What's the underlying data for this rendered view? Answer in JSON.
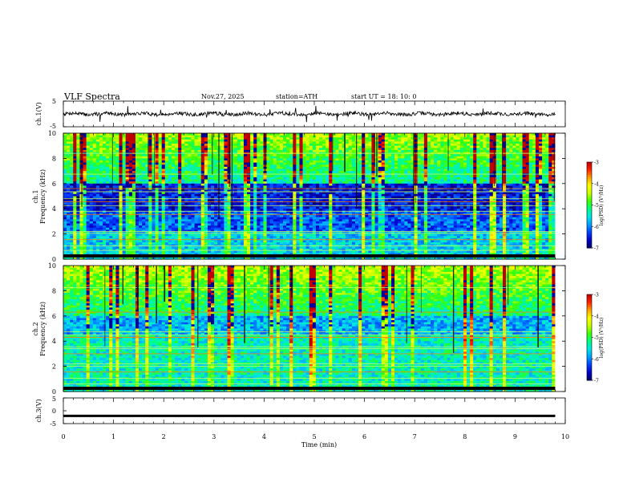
{
  "header": {
    "title": "VLF  Spectra",
    "date": "Nov.27, 2025",
    "station": "station=ATH",
    "start": "start  UT  =   18: 10: 0"
  },
  "chart_data": [
    {
      "type": "line",
      "name": "ch1-waveform",
      "ylabel": "ch.1(V)",
      "ylim": [
        -5,
        5
      ],
      "yticks": [
        "5",
        "-5"
      ],
      "trace_color": "#000000"
    },
    {
      "type": "heatmap",
      "name": "ch1-spectrogram",
      "ylabel_outer": "ch.1",
      "ylabel": "Frequency  (kHz)",
      "ylim": [
        0,
        10
      ],
      "yticks": [
        "10",
        "8",
        "6",
        "4",
        "2",
        "0"
      ],
      "colorbar": {
        "label": "log(PSD) (V²/Hz)",
        "range": [
          -7,
          -3
        ],
        "ticks": [
          "-3",
          "-4",
          "-5",
          "-6",
          "-7"
        ]
      },
      "bands_khz": [
        0.2,
        0.7,
        1.05,
        1.55,
        2.05,
        2.2,
        3.55,
        3.8,
        4.25,
        4.55,
        4.8,
        5.35,
        5.6,
        6.75,
        8.4
      ]
    },
    {
      "type": "heatmap",
      "name": "ch2-spectrogram",
      "ylabel_outer": "ch.2",
      "ylabel": "Frequency  (kHz)",
      "ylim": [
        0,
        10
      ],
      "yticks": [
        "10",
        "8",
        "6",
        "4",
        "2",
        "0"
      ],
      "colorbar": {
        "label": "log(PSD) (V²/Hz)",
        "range": [
          -7,
          -3
        ],
        "ticks": [
          "-3",
          "-4",
          "-5",
          "-6",
          "-7"
        ]
      },
      "bands_khz": [
        0.25,
        0.6,
        1.05,
        1.55,
        2.0,
        2.2,
        3.0,
        3.4,
        3.55,
        4.3,
        4.5,
        4.75,
        6.3,
        8.25
      ]
    },
    {
      "type": "line",
      "name": "ch3-waveform",
      "ylabel": "ch.3(V)",
      "ylim": [
        -5,
        5
      ],
      "yticks": [
        "5",
        "0",
        "-5"
      ],
      "constant_value": -2,
      "trace_color": "#000000"
    }
  ],
  "xaxis": {
    "label": "Time  (min)",
    "range": [
      0,
      10
    ],
    "data_end": 9.8,
    "ticks": [
      "0",
      "1",
      "2",
      "3",
      "4",
      "5",
      "6",
      "7",
      "8",
      "9",
      "10"
    ]
  },
  "colormap": [
    "#000064",
    "#0000c8",
    "#0040ff",
    "#00a0ff",
    "#00e6e6",
    "#00ff80",
    "#40ff00",
    "#c8ff00",
    "#ffff00",
    "#ffa000",
    "#ff2000",
    "#c00000"
  ]
}
